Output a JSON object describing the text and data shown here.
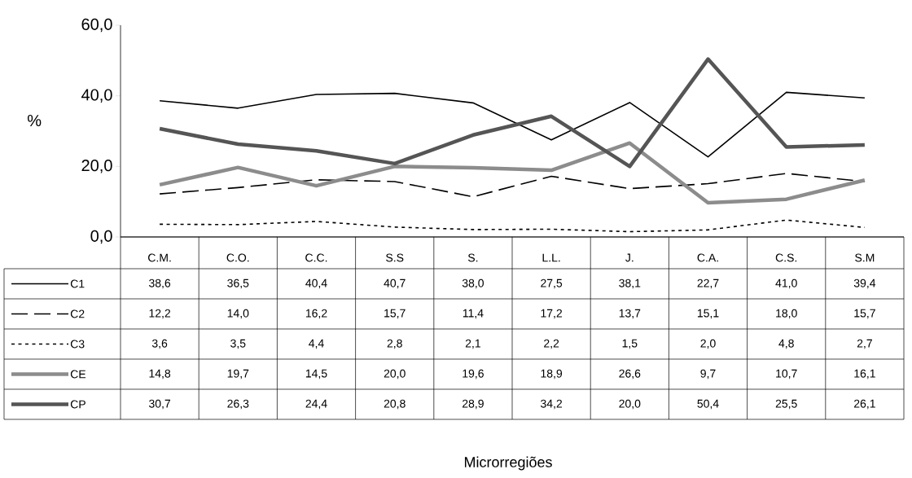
{
  "chart_data": {
    "type": "line",
    "annotations": [
      "Microrregiões"
    ],
    "ylabel": "%",
    "categories": [
      "C.M.",
      "C.O.",
      "C.C.",
      "S.S",
      "S.",
      "L.L.",
      "J.",
      "C.A.",
      "C.S.",
      "S.M"
    ],
    "ylim": [
      0,
      60
    ],
    "yticks": [
      {
        "value": 0,
        "label": "0,0"
      },
      {
        "value": 20,
        "label": "20,0"
      },
      {
        "value": 40,
        "label": "40,0"
      },
      {
        "value": 60,
        "label": "60,0"
      }
    ],
    "grid": false,
    "legend": "bottom",
    "marker": "none",
    "series": [
      {
        "name": "C1",
        "color": "#000000",
        "line_style": "solid",
        "values": [
          38.6,
          36.5,
          40.4,
          40.7,
          38.0,
          27.5,
          38.1,
          22.7,
          41.0,
          39.4
        ],
        "value_labels": [
          "38,6",
          "36,5",
          "40,4",
          "40,7",
          "38,0",
          "27,5",
          "38,1",
          "22,7",
          "41,0",
          "39,4"
        ]
      },
      {
        "name": "C2",
        "color": "#000000",
        "line_style": "dashed",
        "values": [
          12.2,
          14.0,
          16.2,
          15.7,
          11.4,
          17.2,
          13.7,
          15.1,
          18.0,
          15.7
        ],
        "value_labels": [
          "12,2",
          "14,0",
          "16,2",
          "15,7",
          "11,4",
          "17,2",
          "13,7",
          "15,1",
          "18,0",
          "15,7"
        ]
      },
      {
        "name": "C3",
        "color": "#000000",
        "line_style": "dotted",
        "values": [
          3.6,
          3.5,
          4.4,
          2.8,
          2.1,
          2.2,
          1.5,
          2.0,
          4.8,
          2.7
        ],
        "value_labels": [
          "3,6",
          "3,5",
          "4,4",
          "2,8",
          "2,1",
          "2,2",
          "1,5",
          "2,0",
          "4,8",
          "2,7"
        ]
      },
      {
        "name": "CE",
        "color": "#8c8c8c",
        "line_style": "solid",
        "values": [
          14.8,
          19.7,
          14.5,
          20.0,
          19.6,
          18.9,
          26.6,
          9.7,
          10.7,
          16.1
        ],
        "value_labels": [
          "14,8",
          "19,7",
          "14,5",
          "20,0",
          "19,6",
          "18,9",
          "26,6",
          "9,7",
          "10,7",
          "16,1"
        ]
      },
      {
        "name": "CP",
        "color": "#555555",
        "line_style": "solid",
        "values": [
          30.7,
          26.3,
          24.4,
          20.8,
          28.9,
          34.2,
          20.0,
          50.4,
          25.5,
          26.1
        ],
        "value_labels": [
          "30,7",
          "26,3",
          "24,4",
          "20,8",
          "28,9",
          "34,2",
          "20,0",
          "50,4",
          "25,5",
          "26,1"
        ]
      }
    ]
  }
}
